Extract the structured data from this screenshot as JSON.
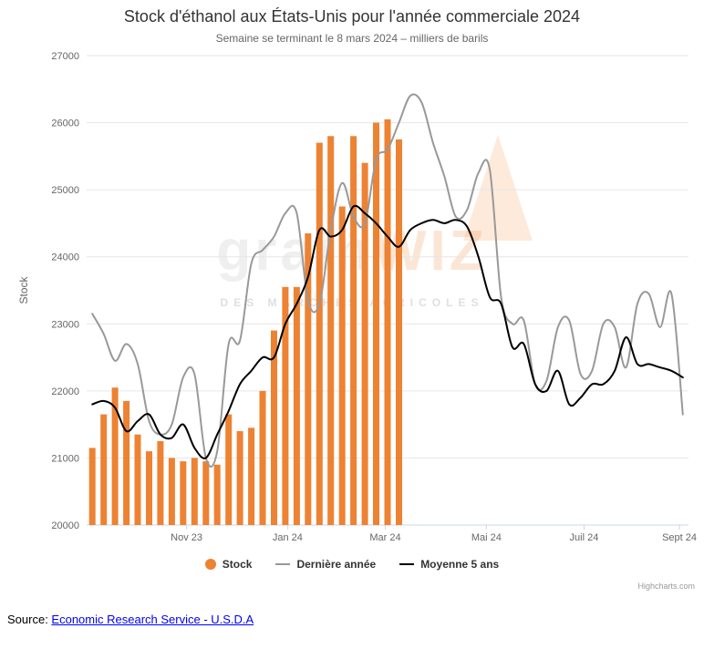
{
  "chart_data": {
    "type": "bar",
    "combo": "bar+line",
    "title": "Stock d'éthanol aux États-Unis pour l'année commerciale 2024",
    "subtitle": "Semaine se terminant le 8 mars 2024 – milliers de barils",
    "ylabel": "Stock",
    "ylim": [
      20000,
      27000
    ],
    "ytick_step": 1000,
    "n_points": 53,
    "grid": true,
    "legend_position": "bottom",
    "grid_color": "#e6e6e6",
    "axis_color": "#ccd6eb",
    "label_color": "#666666",
    "xticks": [
      {
        "index": 8.3,
        "label": "Nov 23"
      },
      {
        "index": 17.2,
        "label": "Jan 24"
      },
      {
        "index": 25.8,
        "label": "Mar 24"
      },
      {
        "index": 34.7,
        "label": "Mai 24"
      },
      {
        "index": 43.3,
        "label": "Juil 24"
      },
      {
        "index": 51.7,
        "label": "Sept 24"
      }
    ],
    "series": [
      {
        "name": "Stock",
        "type": "bar",
        "color": "#ED8233",
        "values": [
          21150,
          21650,
          22050,
          21850,
          21350,
          21100,
          21250,
          21000,
          20950,
          21000,
          20950,
          20900,
          21650,
          21400,
          21450,
          22000,
          22900,
          23550,
          23550,
          24350,
          25700,
          25800,
          24750,
          25800,
          25400,
          26000,
          26050,
          25750
        ]
      },
      {
        "name": "Dernière année",
        "type": "line",
        "color": "#999999",
        "values": [
          23150,
          22850,
          22450,
          22700,
          22400,
          21550,
          21350,
          21500,
          22200,
          22250,
          21000,
          21100,
          22700,
          22750,
          23900,
          24100,
          24300,
          24650,
          24650,
          23350,
          23300,
          24400,
          25100,
          24600,
          24500,
          25450,
          25600,
          26000,
          26400,
          26300,
          25700,
          25200,
          24600,
          24700,
          25250,
          25300,
          23400,
          23000,
          23050,
          22100,
          22150,
          22950,
          23050,
          22250,
          22300,
          23000,
          22950,
          22350,
          23300,
          23450,
          22950,
          23450,
          21650
        ]
      },
      {
        "name": "Moyenne 5 ans",
        "type": "line",
        "color": "#000000",
        "values": [
          21800,
          21850,
          21750,
          21400,
          21550,
          21650,
          21350,
          21300,
          21500,
          21150,
          21000,
          21350,
          21700,
          22100,
          22300,
          22500,
          22500,
          23000,
          23300,
          23700,
          24400,
          24300,
          24400,
          24750,
          24650,
          24500,
          24300,
          24150,
          24400,
          24500,
          24550,
          24500,
          24550,
          24450,
          24000,
          23400,
          23300,
          22650,
          22700,
          22100,
          22000,
          22300,
          21800,
          21900,
          22100,
          22100,
          22300,
          22800,
          22400,
          22400,
          22350,
          22300,
          22200
        ]
      }
    ]
  },
  "watermark": {
    "part1": "grain",
    "part2": "WIZ",
    "tagline": "DES MARCHÉS AGRICOLES"
  },
  "credits": "Highcharts.com",
  "source": {
    "prefix": "Source: ",
    "link": "Economic Research Service - U.S.D.A"
  }
}
